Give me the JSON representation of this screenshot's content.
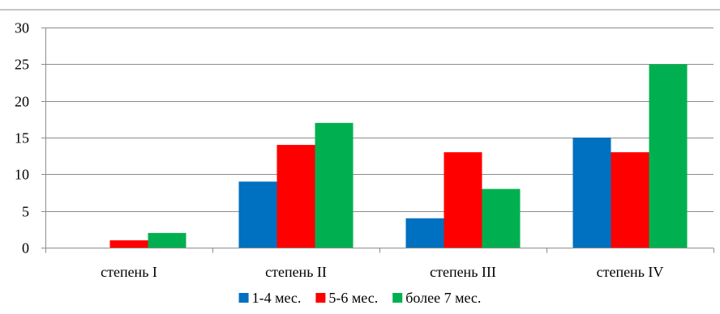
{
  "chart_data": {
    "type": "bar",
    "title": "",
    "xlabel": "",
    "ylabel": "",
    "categories": [
      "степень I",
      "степень II",
      "степень III",
      "степень IV"
    ],
    "series": [
      {
        "name": "1-4 мес.",
        "color": "#0070c0",
        "values": [
          0,
          9,
          4,
          15
        ]
      },
      {
        "name": "5-6 мес.",
        "color": "#ff0000",
        "values": [
          1,
          14,
          13,
          13
        ]
      },
      {
        "name": "более 7 мес.",
        "color": "#00b050",
        "values": [
          2,
          17,
          8,
          25
        ]
      }
    ],
    "ylim": [
      0,
      30
    ],
    "yticks": [
      "0",
      "5",
      "10",
      "15",
      "20",
      "25",
      "30"
    ],
    "grid": true,
    "legend_position": "bottom"
  }
}
